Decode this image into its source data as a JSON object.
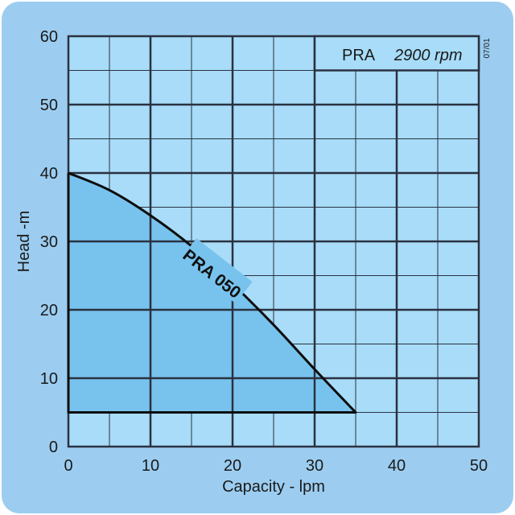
{
  "chart_data": {
    "type": "area",
    "xlabel": "Capacity - lpm",
    "ylabel": "Head -m",
    "xlim": [
      0,
      50
    ],
    "ylim": [
      0,
      60
    ],
    "x_ticks": [
      0,
      10,
      20,
      30,
      40,
      50
    ],
    "y_ticks": [
      0,
      10,
      20,
      30,
      40,
      50,
      60
    ],
    "grid": true,
    "legend": {
      "model": "PRA",
      "speed": "2900 rpm",
      "placement": "top-right"
    },
    "revision": "07/01",
    "series": [
      {
        "name": "PRA 050",
        "x": [
          0,
          5,
          10,
          15,
          20,
          25,
          30,
          35
        ],
        "y": [
          40,
          37.5,
          33.8,
          29.3,
          23.8,
          17.8,
          11.3,
          5
        ],
        "baseline": 5
      }
    ]
  },
  "colors": {
    "background": "#9ccdf0",
    "plot_area": "#a8dcf8",
    "fill": "#78c3ee",
    "grid_line": "#2b3140",
    "curve": "#0d0d0d"
  }
}
